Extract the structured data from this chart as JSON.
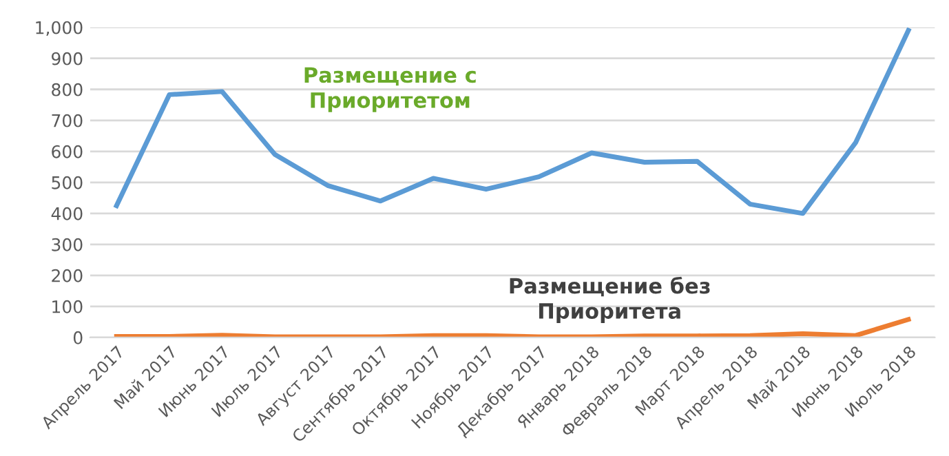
{
  "chart_data": {
    "type": "line",
    "categories": [
      "Апрель 2017",
      "Май 2017",
      "Июнь 2017",
      "Июль 2017",
      "Август 2017",
      "Сентябрь 2017",
      "Октябрь 2017",
      "Ноябрь 2017",
      "Декабрь 2017",
      "Январь 2018",
      "Февраль 2018",
      "Март 2018",
      "Апрель 2018",
      "Май 2018",
      "Июнь 2018",
      "Июль 2018"
    ],
    "series": [
      {
        "name": "Размещение с\nПриоритетом",
        "color": "#5b9bd5",
        "values": [
          425,
          783,
          793,
          590,
          490,
          440,
          513,
          478,
          518,
          595,
          565,
          568,
          430,
          400,
          628,
          990
        ]
      },
      {
        "name": "Размещение без\nПриоритета",
        "color": "#ed7d31",
        "values": [
          3,
          3,
          7,
          2,
          2,
          2,
          6,
          6,
          2,
          2,
          5,
          5,
          6,
          12,
          6,
          58
        ]
      }
    ],
    "ylim": [
      0,
      1000
    ],
    "yticks": [
      0,
      100,
      200,
      300,
      400,
      500,
      600,
      700,
      800,
      900,
      {
        "value": 1000,
        "label": "1,000"
      }
    ],
    "grid": "y",
    "marker": "none",
    "line_style": "solid"
  }
}
